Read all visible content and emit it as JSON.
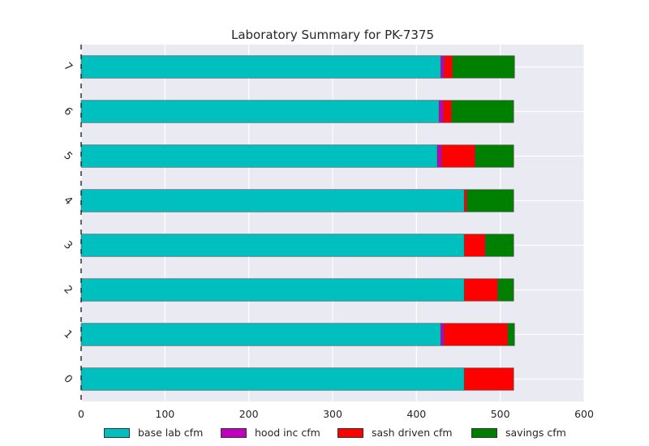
{
  "chart_data": {
    "type": "bar",
    "orientation": "horizontal",
    "stacked": true,
    "title": "Laboratory Summary for PK-7375",
    "xlabel": "",
    "ylabel": "",
    "xlim": [
      0,
      600
    ],
    "x_ticks": [
      "0",
      "100",
      "200",
      "300",
      "400",
      "500",
      "600"
    ],
    "categories": [
      "0",
      "1",
      "2",
      "3",
      "4",
      "5",
      "6",
      "7"
    ],
    "series": [
      {
        "name": "base lab cfm",
        "color": "#00bfbf",
        "values": [
          457,
          429,
          457,
          457,
          457,
          425,
          427,
          429
        ]
      },
      {
        "name": "hood inc cfm",
        "color": "#bf00bf",
        "values": [
          0,
          4,
          0,
          0,
          0,
          5,
          5,
          4
        ]
      },
      {
        "name": "sash driven cfm",
        "color": "#ff0000",
        "values": [
          59,
          76,
          40,
          25,
          3,
          40,
          10,
          10
        ]
      },
      {
        "name": "savings cfm",
        "color": "#008000",
        "values": [
          0,
          8,
          19,
          34,
          56,
          46,
          74,
          74
        ]
      }
    ],
    "grid": true,
    "legend_position": "bottom"
  }
}
